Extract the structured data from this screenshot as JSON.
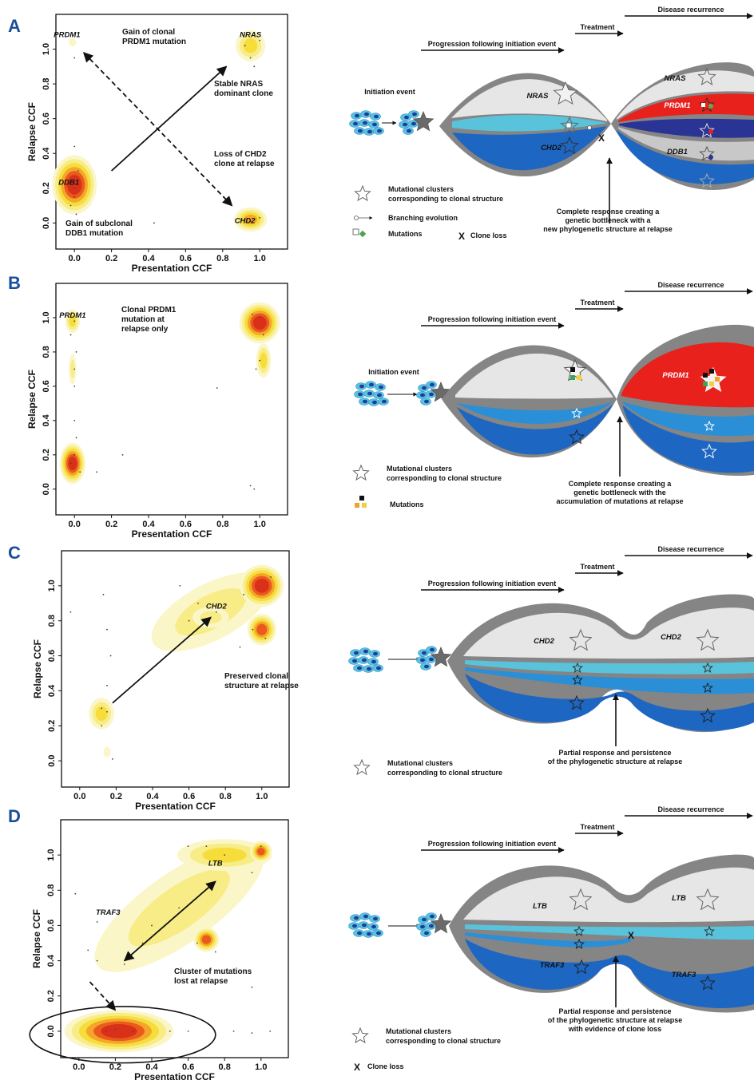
{
  "panels": [
    {
      "label": "A",
      "xlabel": "Presentation CCF",
      "ylabel": "Relapse CCF",
      "xticks": [
        "0.0",
        "0.2",
        "0.4",
        "0.6",
        "0.8",
        "1.0"
      ],
      "yticks": [
        "0.0",
        "0.2",
        "0.4",
        "0.6",
        "0.8",
        "1.0"
      ],
      "annotations": [
        [
          "Gain of clonal",
          "PRDM1 mutation"
        ],
        [
          "Stable NRAS",
          "dominant clone"
        ],
        [
          "Loss of CHD2",
          "clone at relapse"
        ],
        [
          "Gain of subclonal",
          "DDB1 mutation"
        ]
      ],
      "gene_labels": [
        "PRDM1",
        "NRAS",
        "DDB1",
        "CHD2"
      ],
      "schematic": {
        "recurrence": "Disease recurrence",
        "treatment": "Treatment",
        "progression": "Progression following initiation event",
        "initiation": "Initiation event",
        "clone_labels": [
          "NRAS",
          "CHD2",
          "NRAS",
          "PRDM1",
          "DDB1"
        ],
        "loss_mark": "X",
        "legend": [
          [
            "Mutational clusters",
            "corresponding to clonal structure"
          ],
          [
            "Branching evolution"
          ],
          [
            "Mutations"
          ],
          [
            "Clone loss"
          ]
        ],
        "caption": [
          "Complete response creating a",
          "genetic bottleneck with a",
          "new phylogenetic structure at relapse"
        ]
      }
    },
    {
      "label": "B",
      "xlabel": "Presentation CCF",
      "ylabel": "Relapse CCF",
      "xticks": [
        "0.0",
        "0.2",
        "0.4",
        "0.6",
        "0.8",
        "1.0"
      ],
      "yticks": [
        "0.0",
        "0.2",
        "0.4",
        "0.6",
        "0.8",
        "1.0"
      ],
      "annotations": [
        [
          "Clonal PRDM1",
          "mutation at",
          "relapse only"
        ]
      ],
      "gene_labels": [
        "PRDM1"
      ],
      "schematic": {
        "recurrence": "Disease recurrence",
        "treatment": "Treatment",
        "progression": "Progression following initiation event",
        "initiation": "Initiation event",
        "clone_labels": [
          "PRDM1"
        ],
        "legend": [
          [
            "Mutational clusters",
            "corresponding to clonal structure"
          ],
          [
            "Mutations"
          ]
        ],
        "caption": [
          "Complete response creating a",
          "genetic bottleneck with the",
          "accumulation of mutations at relapse"
        ]
      }
    },
    {
      "label": "C",
      "xlabel": "Presentation CCF",
      "ylabel": "Relapse CCF",
      "xticks": [
        "0.0",
        "0.2",
        "0.4",
        "0.6",
        "0.8",
        "1.0"
      ],
      "yticks": [
        "0.0",
        "0.2",
        "0.4",
        "0.6",
        "0.8",
        "1.0"
      ],
      "annotations": [
        [
          "Preserved clonal",
          "structure at relapse"
        ]
      ],
      "gene_labels": [
        "CHD2"
      ],
      "schematic": {
        "recurrence": "Disease recurrence",
        "treatment": "Treatment",
        "progression": "Progression following initiation event",
        "clone_labels": [
          "CHD2",
          "CHD2"
        ],
        "legend": [
          [
            "Mutational clusters",
            "corresponding to clonal structure"
          ]
        ],
        "caption": [
          "Partial response and persistence",
          "of the phylogenetic structure at relapse"
        ]
      }
    },
    {
      "label": "D",
      "xlabel": "Presentation CCF",
      "ylabel": "Relapse CCF",
      "xticks": [
        "0.0",
        "0.2",
        "0.4",
        "0.6",
        "0.8",
        "1.0"
      ],
      "yticks": [
        "0.0",
        "0.2",
        "0.4",
        "0.6",
        "0.8",
        "1.0"
      ],
      "annotations": [
        [
          "Cluster of mutations",
          "lost at relapse"
        ]
      ],
      "gene_labels": [
        "LTB",
        "TRAF3"
      ],
      "schematic": {
        "recurrence": "Disease recurrence",
        "treatment": "Treatment",
        "progression": "Progression following initiation event",
        "clone_labels": [
          "LTB",
          "LTB",
          "TRAF3",
          "TRAF3"
        ],
        "loss_mark": "X",
        "legend": [
          [
            "Mutational clusters",
            "corresponding to clonal structure"
          ],
          [
            "Clone loss"
          ]
        ],
        "caption": [
          "Partial response and persistence",
          "of the phylogenetic structure at relapse",
          "with evidence of clone loss"
        ]
      }
    }
  ],
  "colors": {
    "density": [
      "#fbf6c8",
      "#f8ec86",
      "#f6dd3a",
      "#f3a62a",
      "#ea5a1c",
      "#d9301a"
    ],
    "dark_gray": "#858585",
    "light_gray": "#e6e6e6",
    "red": "#e8211d",
    "navy": "#2a3495",
    "cyan": "#59c3db",
    "mid_blue": "#2a8fd6",
    "blue": "#1d66c2",
    "panel_label": "#1a4f9c"
  }
}
